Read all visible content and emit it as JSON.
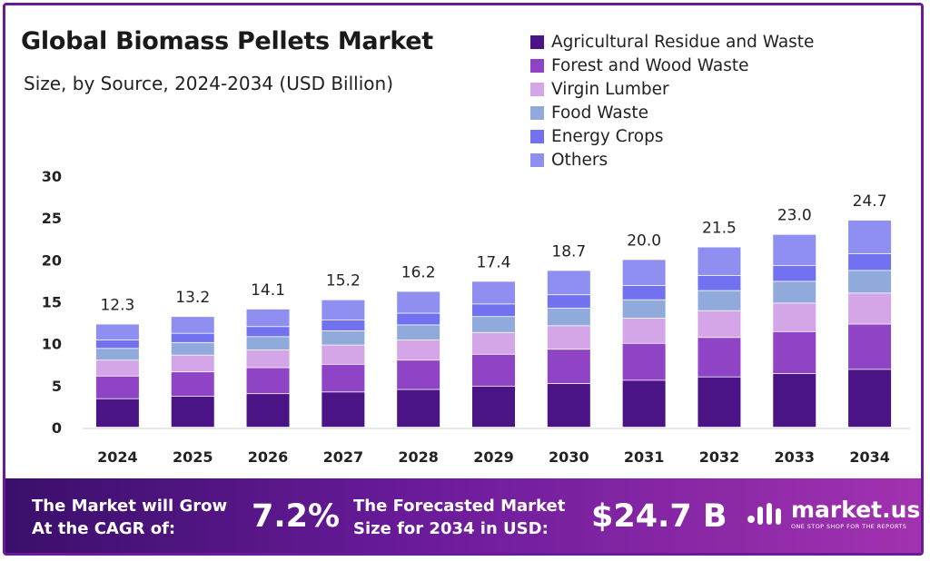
{
  "header": {
    "title": "Global Biomass Pellets Market",
    "subtitle": "Size, by Source, 2024-2034 (USD Billion)"
  },
  "chart_data": {
    "type": "bar",
    "stacked": true,
    "categories": [
      "2024",
      "2025",
      "2026",
      "2027",
      "2028",
      "2029",
      "2030",
      "2031",
      "2032",
      "2033",
      "2034"
    ],
    "totals": [
      12.3,
      13.2,
      14.1,
      15.2,
      16.2,
      17.4,
      18.7,
      20.0,
      21.5,
      23.0,
      24.7
    ],
    "total_labels": [
      "12.3",
      "13.2",
      "14.1",
      "15.2",
      "16.2",
      "17.4",
      "18.7",
      "20.0",
      "21.5",
      "23.0",
      "24.7"
    ],
    "series": [
      {
        "name": "Agricultural Residue and Waste",
        "color": "#4a1486",
        "values": [
          3.4,
          3.7,
          4.0,
          4.2,
          4.5,
          4.9,
          5.2,
          5.6,
          6.0,
          6.4,
          6.9
        ]
      },
      {
        "name": "Forest and Wood Waste",
        "color": "#8e44c4",
        "values": [
          2.7,
          2.9,
          3.1,
          3.3,
          3.5,
          3.8,
          4.1,
          4.4,
          4.7,
          5.0,
          5.4
        ]
      },
      {
        "name": "Virgin Lumber",
        "color": "#d4a6e8",
        "values": [
          1.9,
          2.0,
          2.1,
          2.3,
          2.4,
          2.6,
          2.8,
          3.0,
          3.2,
          3.4,
          3.7
        ]
      },
      {
        "name": "Food Waste",
        "color": "#90aadc",
        "values": [
          1.4,
          1.5,
          1.6,
          1.7,
          1.8,
          1.9,
          2.1,
          2.2,
          2.4,
          2.6,
          2.7
        ]
      },
      {
        "name": "Energy Crops",
        "color": "#7272f0",
        "values": [
          1.0,
          1.1,
          1.2,
          1.3,
          1.4,
          1.5,
          1.6,
          1.7,
          1.8,
          1.9,
          2.0
        ]
      },
      {
        "name": "Others",
        "color": "#8f8ff2",
        "values": [
          1.9,
          2.0,
          2.1,
          2.4,
          2.6,
          2.7,
          2.9,
          3.1,
          3.4,
          3.7,
          4.0
        ]
      }
    ],
    "y_ticks": [
      0,
      5,
      10,
      15,
      20,
      25,
      30
    ],
    "ylim": [
      0,
      30
    ],
    "grid": false,
    "legend_position": "top-right"
  },
  "footer": {
    "cagr_text_line1": "The Market will Grow",
    "cagr_text_line2": "At the CAGR of:",
    "cagr_value": "7.2%",
    "forecast_text_line1": "The Forecasted Market",
    "forecast_text_line2": "Size for 2034 in USD:",
    "forecast_value": "$24.7 B",
    "brand_name": "market.us",
    "brand_tagline": "ONE STOP SHOP FOR THE REPORTS"
  }
}
